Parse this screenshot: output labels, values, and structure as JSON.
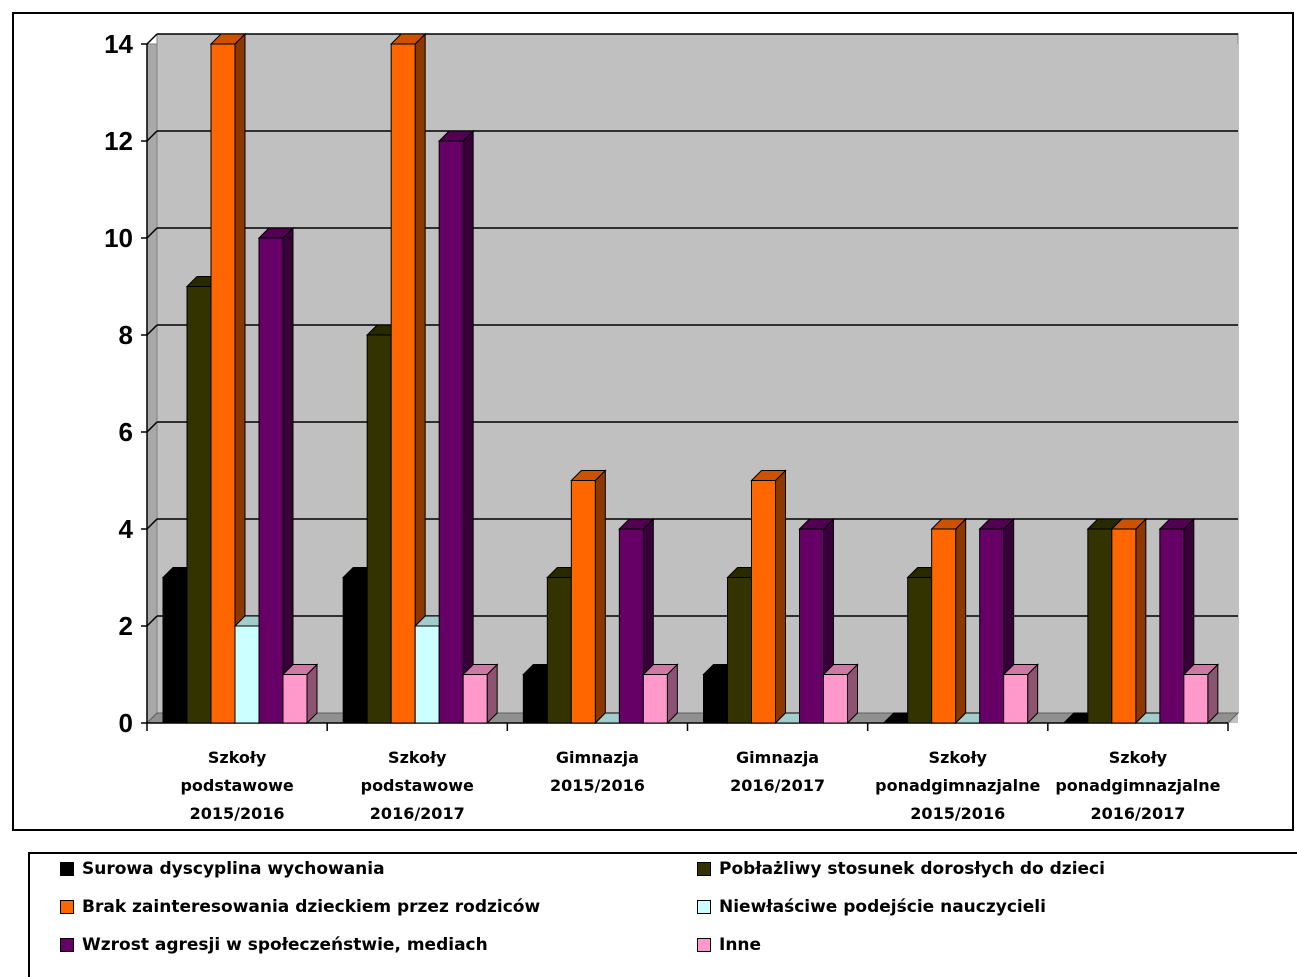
{
  "chart_data": {
    "type": "bar",
    "categories": [
      [
        "Szkoły",
        "podstawowe",
        "2015/2016"
      ],
      [
        "Szkoły",
        "podstawowe",
        "2016/2017"
      ],
      [
        "Gimnazja",
        "2015/2016"
      ],
      [
        "Gimnazja",
        "2016/2017"
      ],
      [
        "Szkoły",
        "ponadgimnazjalne",
        "2015/2016"
      ],
      [
        "Szkoły",
        "ponadgimnazjalne",
        "2016/2017"
      ]
    ],
    "series": [
      {
        "name": "Surowa dyscyplina wychowania",
        "color": "#000000",
        "values": [
          3,
          3,
          1,
          1,
          0,
          0
        ]
      },
      {
        "name": "Pobłażliwy stosunek dorosłych do dzieci",
        "color": "#333300",
        "values": [
          9,
          8,
          3,
          3,
          3,
          4
        ]
      },
      {
        "name": "Brak zainteresowania dzieckiem przez rodziców",
        "color": "#ff6600",
        "values": [
          14,
          14,
          5,
          5,
          4,
          4
        ]
      },
      {
        "name": "Niewłaściwe podejście nauczycieli",
        "color": "#ccffff",
        "values": [
          2,
          2,
          0,
          0,
          0,
          0
        ]
      },
      {
        "name": "Wzrost agresji w społeczeństwie, mediach",
        "color": "#660066",
        "values": [
          10,
          12,
          4,
          4,
          4,
          4
        ]
      },
      {
        "name": "Inne",
        "color": "#ff99cc",
        "values": [
          1,
          1,
          1,
          1,
          1,
          1
        ]
      }
    ],
    "yticks": [
      "0",
      "2",
      "4",
      "6",
      "8",
      "10",
      "12",
      "14"
    ],
    "ylim": [
      0,
      14
    ],
    "grid": true,
    "legend_position": "bottom",
    "plot_background": "#c0c0c0"
  }
}
